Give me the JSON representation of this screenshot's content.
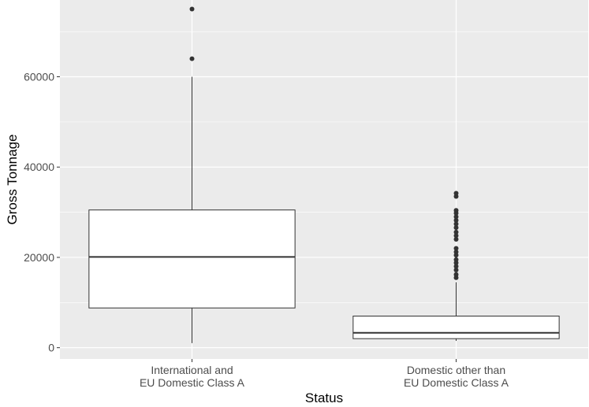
{
  "chart_data": {
    "type": "boxplot",
    "xlabel": "Status",
    "ylabel": "Gross Tonnage",
    "ylim": [
      -2500,
      77000
    ],
    "yticks": [
      0,
      20000,
      40000,
      60000
    ],
    "ytick_labels": [
      "0",
      "20000",
      "40000",
      "60000"
    ],
    "grid": true,
    "categories": [
      [
        "International and",
        "EU Domestic Class A"
      ],
      [
        "Domestic other than",
        "EU Domestic Class A"
      ]
    ],
    "boxes": [
      {
        "whisker_low": 1000,
        "q1": 8800,
        "median": 20100,
        "q3": 30500,
        "whisker_high": 60000,
        "outliers": [
          64000,
          75000
        ]
      },
      {
        "whisker_low": 1500,
        "q1": 2000,
        "median": 3300,
        "q3": 7000,
        "whisker_high": 14500,
        "outliers": [
          15500,
          16200,
          17200,
          18000,
          18800,
          19500,
          20500,
          21200,
          22000,
          24000,
          24800,
          25600,
          26600,
          27400,
          28200,
          29000,
          29800,
          30400,
          33500,
          34200
        ]
      }
    ],
    "colors": {
      "panel": "#ebebeb",
      "grid": "#ffffff",
      "box_fill": "#ffffff",
      "box_stroke": "#333333",
      "outlier": "#333333"
    }
  }
}
